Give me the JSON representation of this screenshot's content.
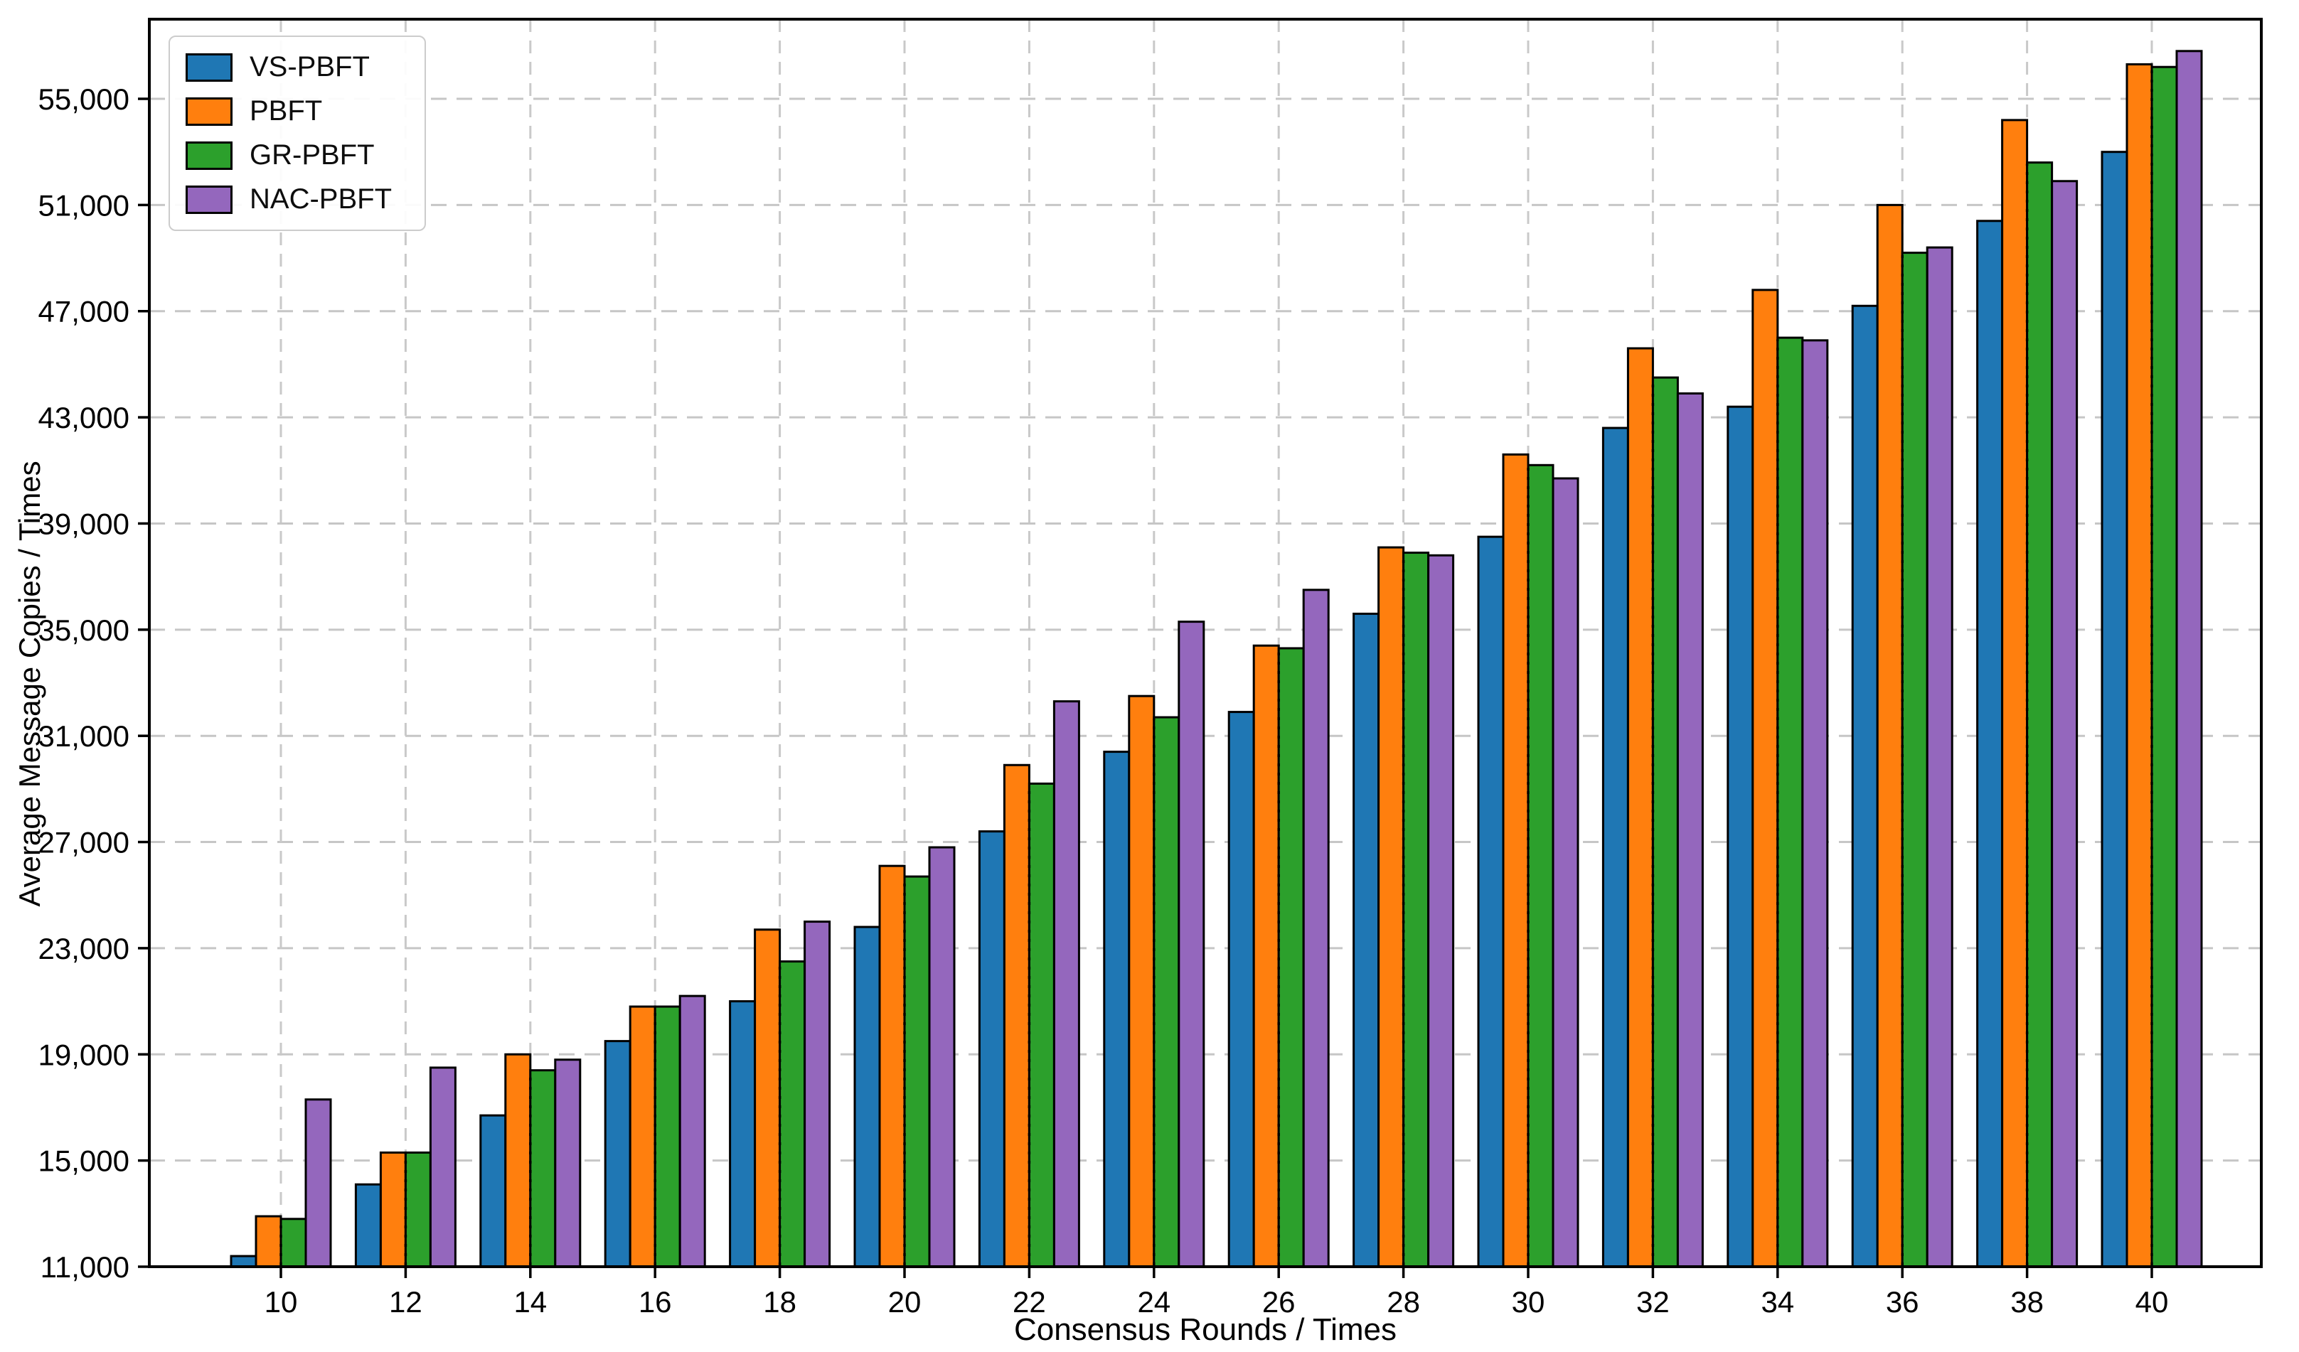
{
  "figure": {
    "background": "#ffffff",
    "frame_color": "#000000",
    "grid_color": "#c6c6c6"
  },
  "axes": {
    "x_title": "Consensus Rounds / Times",
    "y_title": "Average Message Copies / Times"
  },
  "chart_data": {
    "type": "bar",
    "title": "",
    "xlabel": "Consensus Rounds / Times",
    "ylabel": "Average Message Copies / Times",
    "categories": [
      10,
      12,
      14,
      16,
      18,
      20,
      22,
      24,
      26,
      28,
      30,
      32,
      34,
      36,
      38,
      40
    ],
    "series": [
      {
        "name": "VS-PBFT",
        "color": "#1f77b4",
        "values": [
          11400,
          14100,
          16700,
          19500,
          21000,
          23800,
          27400,
          30400,
          31900,
          35600,
          38500,
          42600,
          43400,
          47200,
          50400,
          53000
        ]
      },
      {
        "name": "PBFT",
        "color": "#ff7f0e",
        "values": [
          12900,
          15300,
          19000,
          20800,
          23700,
          26100,
          29900,
          32500,
          34400,
          38100,
          41600,
          45600,
          47800,
          51000,
          54200,
          56300
        ]
      },
      {
        "name": "GR-PBFT",
        "color": "#2ca02c",
        "values": [
          12800,
          15300,
          18400,
          20800,
          22500,
          25700,
          29200,
          31700,
          34300,
          37900,
          41200,
          44500,
          46000,
          49200,
          52600,
          56200
        ]
      },
      {
        "name": "NAC-PBFT",
        "color": "#9467bd",
        "values": [
          17300,
          18500,
          18800,
          21200,
          24000,
          26800,
          32300,
          35300,
          36500,
          37800,
          40700,
          43900,
          45900,
          49400,
          51900,
          56800
        ]
      }
    ],
    "ylim": [
      11000,
      58000
    ],
    "yticks": [
      11000,
      15000,
      19000,
      23000,
      27000,
      31000,
      35000,
      39000,
      43000,
      47000,
      51000,
      55000
    ],
    "grid": true,
    "legend_position": "upper-left",
    "bar_edge_color": "#000000"
  }
}
